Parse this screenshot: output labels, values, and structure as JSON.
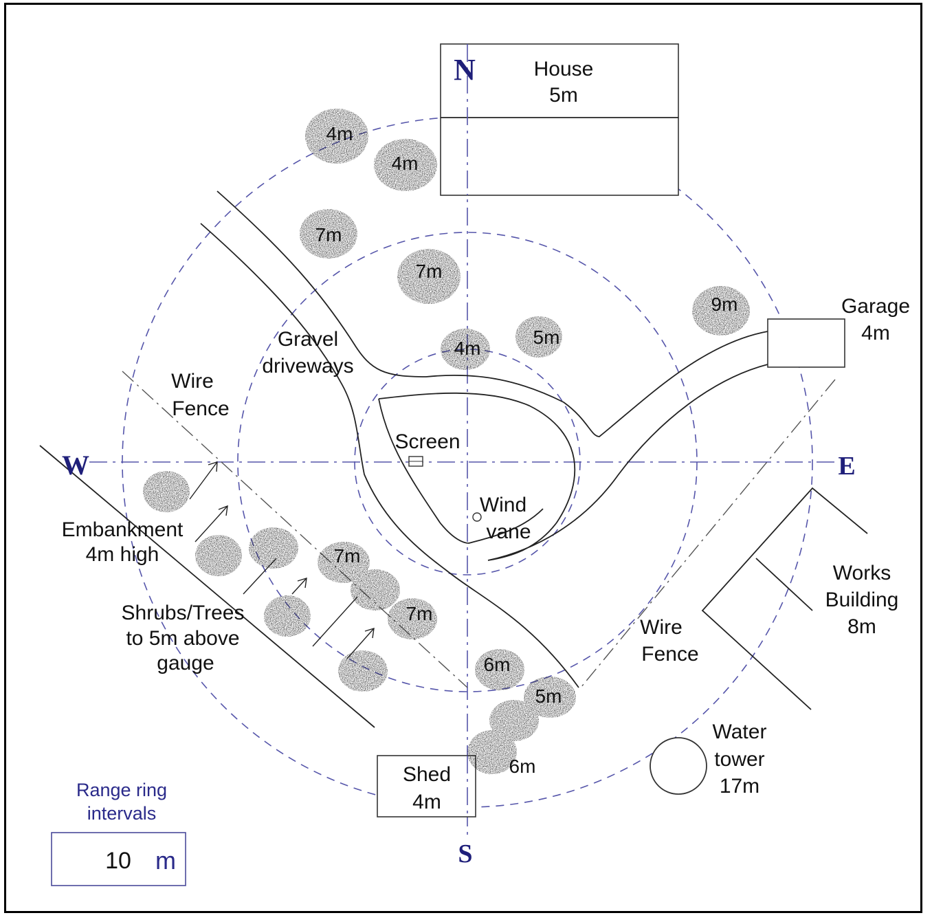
{
  "compass": {
    "north": "N",
    "south": "S",
    "east": "E",
    "west": "W"
  },
  "labels": {
    "house_name": "House",
    "house_height": "5m",
    "garage_name": "Garage",
    "garage_height": "4m",
    "gravel_line1": "Gravel",
    "gravel_line2": "driveways",
    "wire_fence_west_line1": "Wire",
    "wire_fence_west_line2": "Fence",
    "screen": "Screen",
    "wind_line1": "Wind",
    "wind_line2": "vane",
    "embankment_line1": "Embankment",
    "embankment_line2": "4m high",
    "shrubs_line1": "Shrubs/Trees",
    "shrubs_line2": "to 5m above",
    "shrubs_line3": "gauge",
    "works_line1": "Works",
    "works_line2": "Building",
    "works_line3": "8m",
    "wire_fence_se_line1": "Wire",
    "wire_fence_se_line2": "Fence",
    "water_line1": "Water",
    "water_line2": "tower",
    "water_line3": "17m",
    "shed_name": "Shed",
    "shed_height": "4m"
  },
  "trees": [
    {
      "id": "tree-nw-1",
      "label": "4m"
    },
    {
      "id": "tree-nw-2",
      "label": "4m"
    },
    {
      "id": "tree-nw-3",
      "label": "7m"
    },
    {
      "id": "tree-n-4",
      "label": "7m"
    },
    {
      "id": "tree-n-5",
      "label": "4m"
    },
    {
      "id": "tree-ne-6",
      "label": "5m"
    },
    {
      "id": "tree-ne-7",
      "label": "9m"
    },
    {
      "id": "tree-s-1",
      "label": "7m"
    },
    {
      "id": "tree-s-2",
      "label": "7m"
    },
    {
      "id": "tree-s-3",
      "label": "6m"
    },
    {
      "id": "tree-s-4",
      "label": "5m"
    },
    {
      "id": "tree-s-5",
      "label": "6m"
    }
  ],
  "legend": {
    "title_line1": "Range ring",
    "title_line2": "intervals",
    "value": "10",
    "unit": "m"
  },
  "colors": {
    "ring": "#5555aa",
    "compass": "#1f1f7a",
    "legend_text": "#2a2a8a",
    "foliage": "#1a1a1a"
  }
}
